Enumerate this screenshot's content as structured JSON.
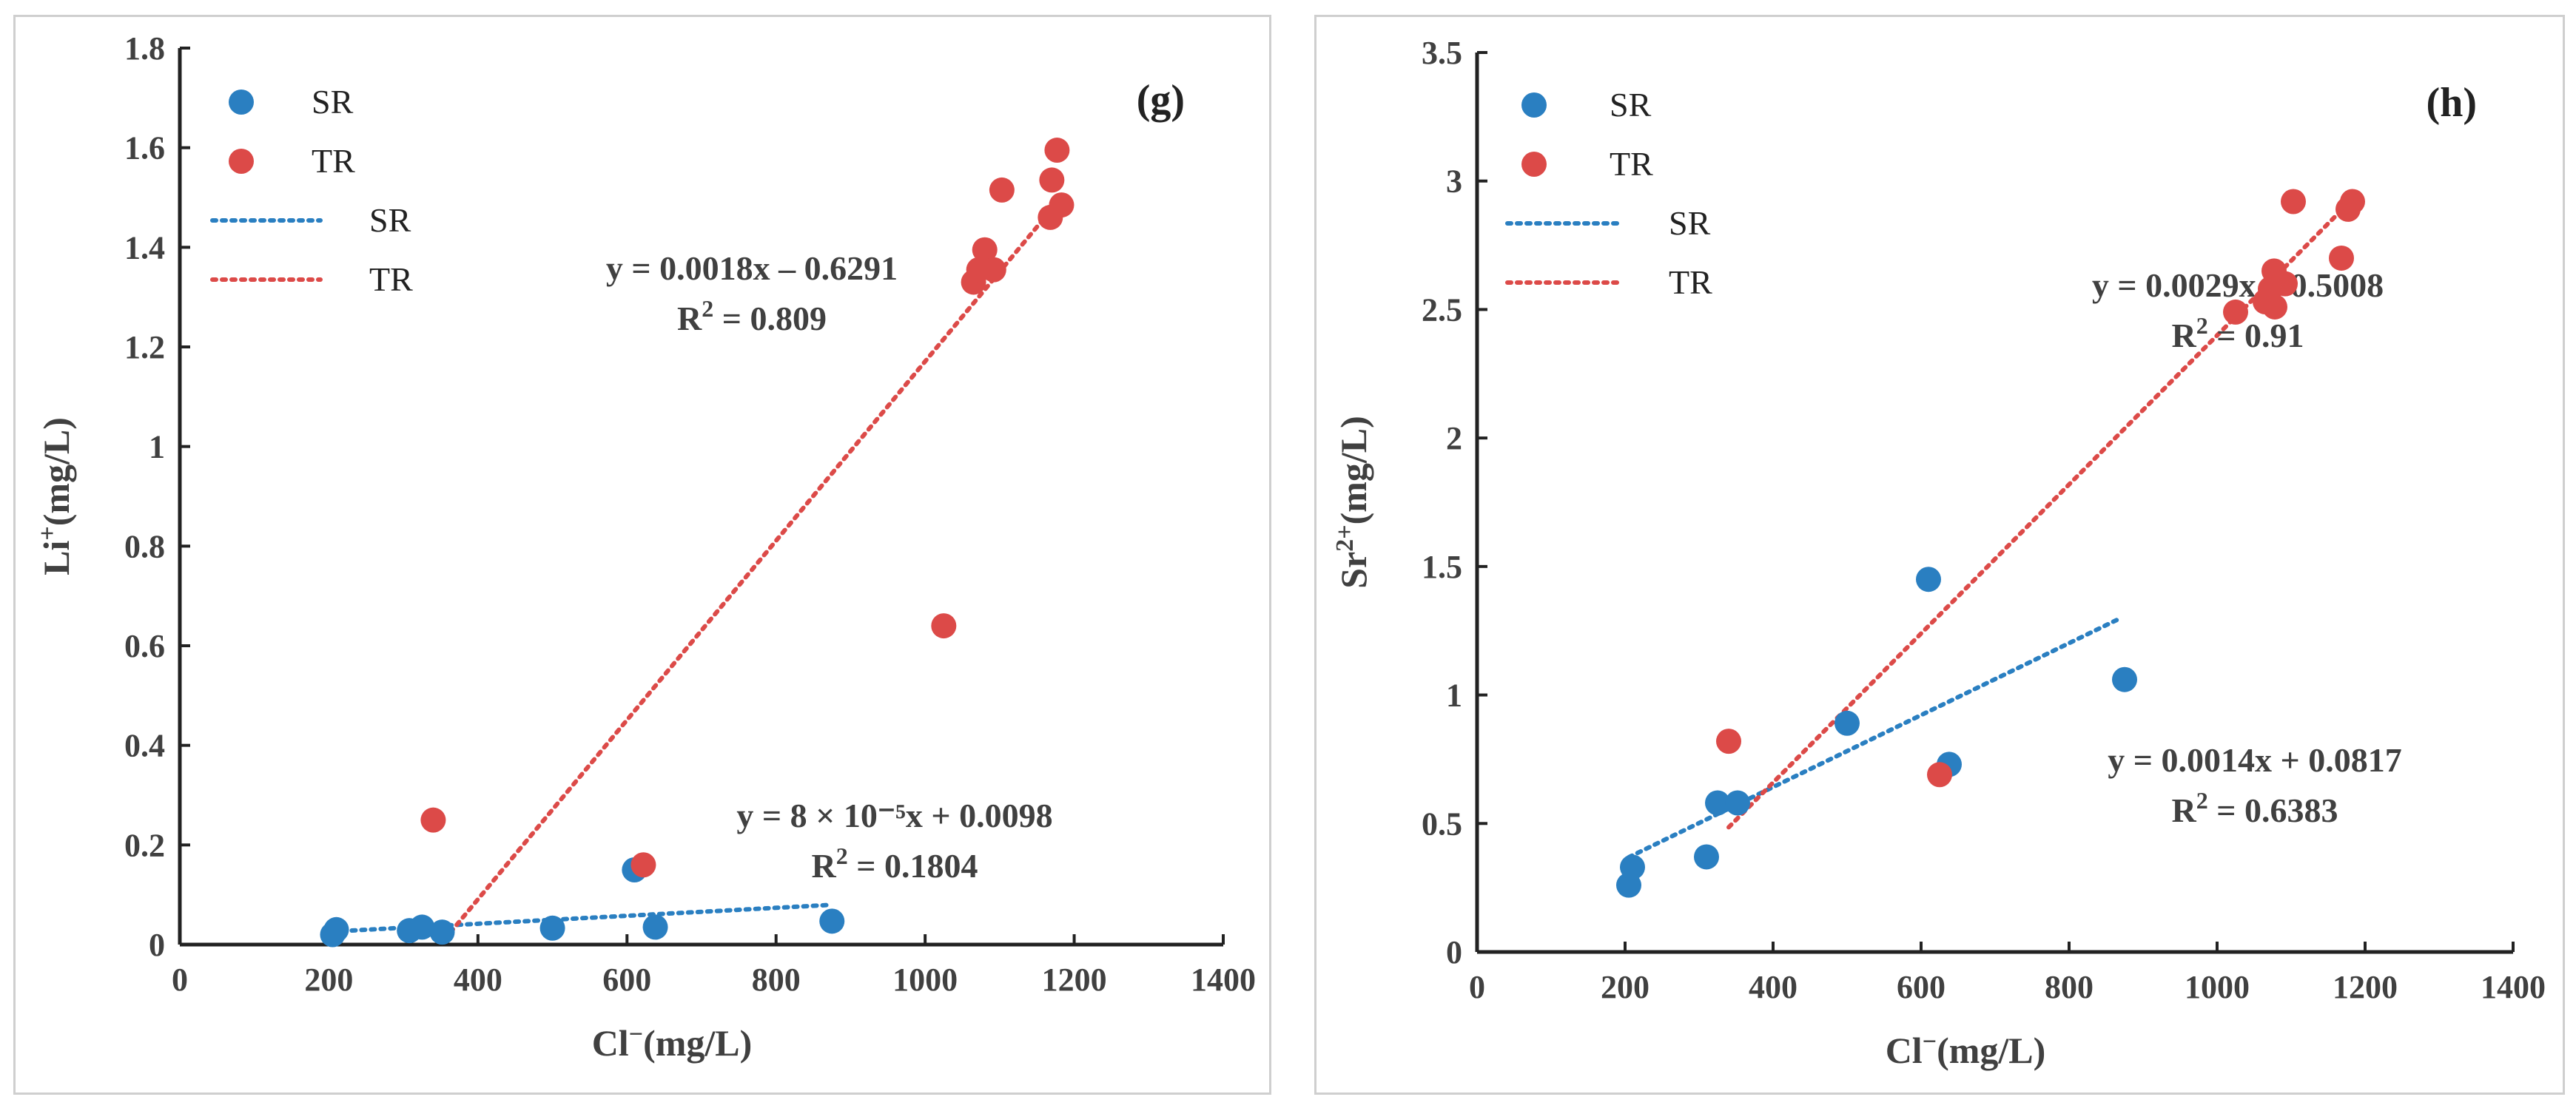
{
  "colors": {
    "SR": "#2a7fc1",
    "TR": "#dc4a48"
  },
  "chart_data": [
    {
      "type": "scatter",
      "panel_label": "(g)",
      "xlabel_main": "Cl",
      "xlabel_sup": "−",
      "xlabel_unit": "(mg/L)",
      "ylabel_main": "Li",
      "ylabel_sup": "+",
      "ylabel_unit": "(mg/L)",
      "xlim": [
        0,
        1400
      ],
      "ylim": [
        0,
        1.8
      ],
      "xticks": [
        0,
        200,
        400,
        600,
        800,
        1000,
        1200,
        1400
      ],
      "yticks": [
        0,
        0.2,
        0.4,
        0.6,
        0.8,
        1.0,
        1.2,
        1.4,
        1.6,
        1.8
      ],
      "ytick_labels": [
        "0",
        "0.2",
        "0.4",
        "0.6",
        "0.8",
        "1",
        "1.2",
        "1.4",
        "1.6",
        "1.8"
      ],
      "legend": [
        {
          "kind": "marker",
          "series": "SR",
          "label": "SR"
        },
        {
          "kind": "marker",
          "series": "TR",
          "label": "TR"
        },
        {
          "kind": "line",
          "series": "SR",
          "label": "SR"
        },
        {
          "kind": "line",
          "series": "TR",
          "label": "TR"
        }
      ],
      "series": [
        {
          "name": "SR",
          "points": [
            [
              205,
              0.02
            ],
            [
              210,
              0.03
            ],
            [
              308,
              0.028
            ],
            [
              325,
              0.035
            ],
            [
              352,
              0.025
            ],
            [
              500,
              0.033
            ],
            [
              610,
              0.15
            ],
            [
              638,
              0.035
            ],
            [
              875,
              0.047
            ]
          ]
        },
        {
          "name": "TR",
          "points": [
            [
              340,
              0.25
            ],
            [
              622,
              0.16
            ],
            [
              1025,
              0.64
            ],
            [
              1065,
              1.33
            ],
            [
              1072,
              1.355
            ],
            [
              1080,
              1.395
            ],
            [
              1092,
              1.355
            ],
            [
              1103,
              1.515
            ],
            [
              1168,
              1.46
            ],
            [
              1170,
              1.535
            ],
            [
              1177,
              1.595
            ],
            [
              1183,
              1.485
            ]
          ]
        }
      ],
      "trendlines": [
        {
          "series": "SR",
          "x_range": [
            205,
            875
          ],
          "slope": 8e-05,
          "intercept": 0.0098,
          "eq": "y = 8 × 10⁻⁵x + 0.0098",
          "r2_label": "R",
          "r2_sup": "2",
          "r2_value": " = 0.1804"
        },
        {
          "series": "TR",
          "x_range": [
            355,
            1175
          ],
          "slope": 0.0018,
          "intercept": -0.6291,
          "eq": "y = 0.0018x – 0.6291",
          "r2_label": "R",
          "r2_sup": "2",
          "r2_value": " = 0.809"
        }
      ]
    },
    {
      "type": "scatter",
      "panel_label": "(h)",
      "xlabel_main": "Cl",
      "xlabel_sup": "−",
      "xlabel_unit": "(mg/L)",
      "ylabel_main": "Sr",
      "ylabel_sup": "2+",
      "ylabel_unit": "(mg/L)",
      "xlim": [
        0,
        1400
      ],
      "ylim": [
        0,
        3.5
      ],
      "xticks": [
        0,
        200,
        400,
        600,
        800,
        1000,
        1200,
        1400
      ],
      "yticks": [
        0,
        0.5,
        1.0,
        1.5,
        2.0,
        2.5,
        3.0,
        3.5
      ],
      "ytick_labels": [
        "0",
        "0.5",
        "1",
        "1.5",
        "2",
        "2.5",
        "3",
        "3.5"
      ],
      "legend": [
        {
          "kind": "marker",
          "series": "SR",
          "label": "SR"
        },
        {
          "kind": "marker",
          "series": "TR",
          "label": "TR"
        },
        {
          "kind": "line",
          "series": "SR",
          "label": "SR"
        },
        {
          "kind": "line",
          "series": "TR",
          "label": "TR"
        }
      ],
      "series": [
        {
          "name": "SR",
          "points": [
            [
              205,
              0.26
            ],
            [
              210,
              0.33
            ],
            [
              310,
              0.37
            ],
            [
              325,
              0.58
            ],
            [
              352,
              0.58
            ],
            [
              500,
              0.89
            ],
            [
              610,
              1.45
            ],
            [
              638,
              0.73
            ],
            [
              875,
              1.06
            ]
          ]
        },
        {
          "name": "TR",
          "points": [
            [
              340,
              0.82
            ],
            [
              625,
              0.69
            ],
            [
              1025,
              2.49
            ],
            [
              1065,
              2.53
            ],
            [
              1072,
              2.58
            ],
            [
              1077,
              2.65
            ],
            [
              1078,
              2.51
            ],
            [
              1092,
              2.6
            ],
            [
              1103,
              2.92
            ],
            [
              1168,
              2.7
            ],
            [
              1177,
              2.89
            ],
            [
              1183,
              2.92
            ]
          ]
        }
      ],
      "trendlines": [
        {
          "series": "SR",
          "x_range": [
            205,
            870
          ],
          "slope": 0.0014,
          "intercept": 0.0817,
          "eq": "y = 0.0014x + 0.0817",
          "r2_label": "R",
          "r2_sup": "2",
          "r2_value": " = 0.6383"
        },
        {
          "series": "TR",
          "x_range": [
            340,
            1180
          ],
          "slope": 0.0029,
          "intercept": -0.5008,
          "eq": "y = 0.0029x – 0.5008",
          "r2_label": "R",
          "r2_sup": "2",
          "r2_value": " = 0.91"
        }
      ]
    }
  ]
}
